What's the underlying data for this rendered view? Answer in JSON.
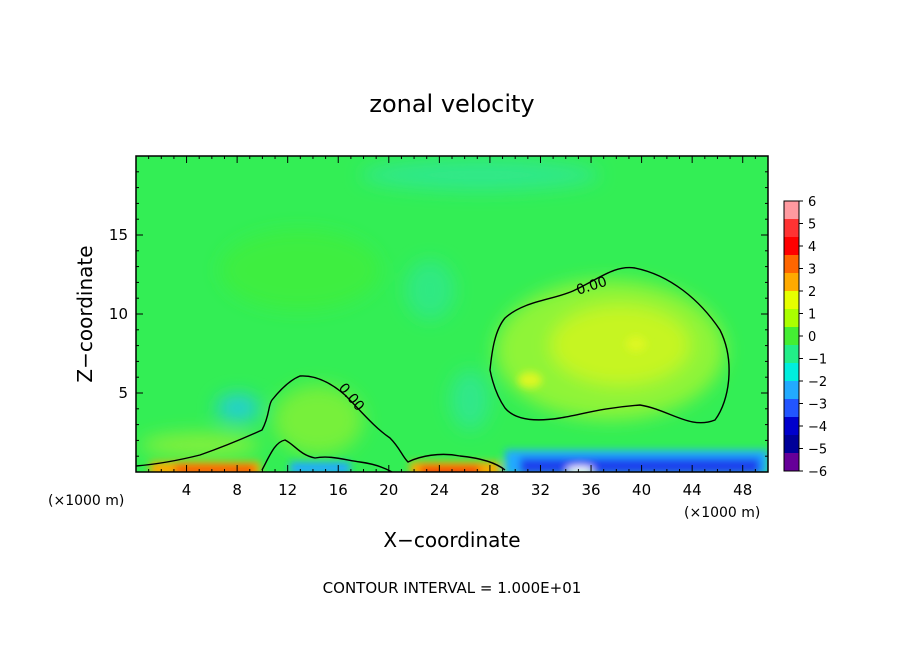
{
  "chart_data": {
    "type": "heatmap",
    "title": "zonal velocity",
    "xlabel": "X−coordinate",
    "ylabel": "Z−coordinate",
    "x_unit_left": "(×1000 m)",
    "x_unit_right": "(×1000 m)",
    "x_ticks": [
      4,
      8,
      12,
      16,
      20,
      24,
      28,
      32,
      36,
      40,
      44,
      48
    ],
    "y_ticks": [
      5,
      10,
      15
    ],
    "xlim": [
      0,
      50
    ],
    "ylim": [
      0,
      20
    ],
    "contour_labels": [
      "0.00",
      "0.00"
    ],
    "colorbar": {
      "levels": [
        6,
        5,
        4,
        3,
        2,
        1,
        0,
        -1,
        -2,
        -3,
        -4,
        -5,
        -6
      ],
      "labels": [
        "6",
        "5",
        "4",
        "3",
        "2",
        "1",
        "0",
        "−1",
        "−2",
        "−3",
        "−4",
        "−5",
        "−6"
      ],
      "colors": [
        "#ff9aa0",
        "#ff3333",
        "#ff0000",
        "#ff6600",
        "#ffaa00",
        "#e6ff00",
        "#aaff00",
        "#44ee33",
        "#22ee88",
        "#00eedd",
        "#22aaff",
        "#2255ff",
        "#0000cc",
        "#000099",
        "#660099"
      ]
    },
    "footer": "CONTOUR INTERVAL = 1.000E+01"
  }
}
